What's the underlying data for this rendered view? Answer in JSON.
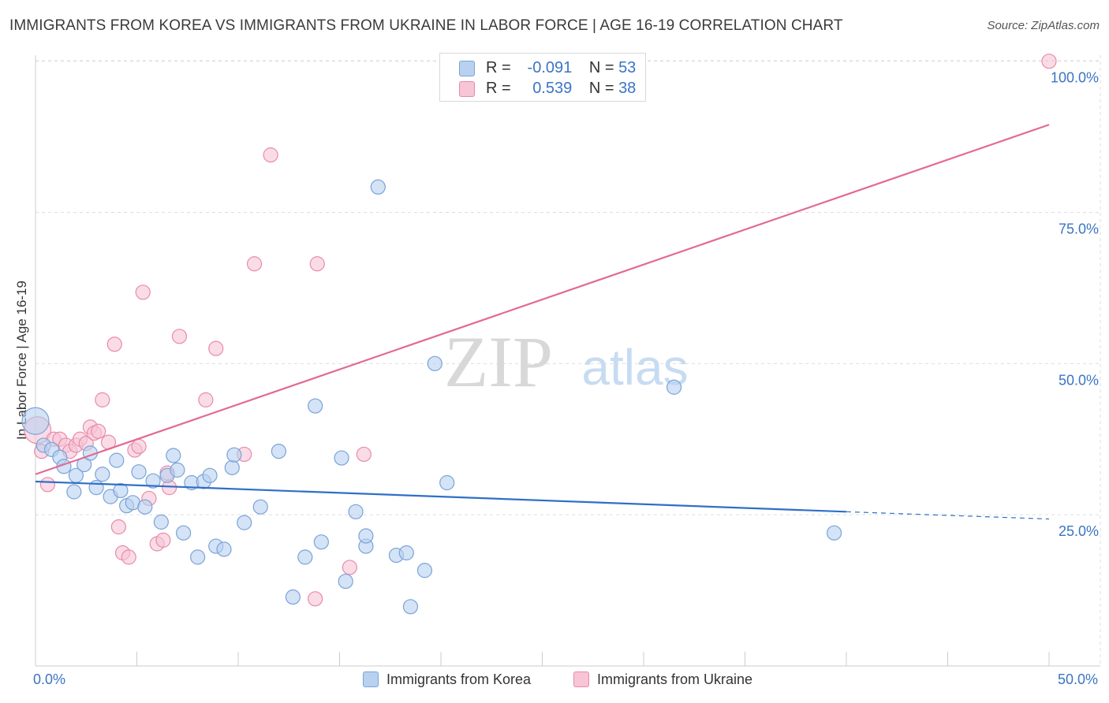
{
  "header": {
    "title": "IMMIGRANTS FROM KOREA VS IMMIGRANTS FROM UKRAINE IN LABOR FORCE | AGE 16-19 CORRELATION CHART",
    "source": "Source: ZipAtlas.com"
  },
  "watermark": {
    "zip": "ZIP",
    "atlas": "atlas"
  },
  "legend": {
    "korea": {
      "r_label": "R =",
      "r_value": "-0.091",
      "n_label": "N =",
      "n_value": "53"
    },
    "ukraine": {
      "r_label": "R =",
      "r_value": "0.539",
      "n_label": "N =",
      "n_value": "38"
    }
  },
  "colors": {
    "korea_fill": "#b8d1f0",
    "korea_stroke": "#7aa3d8",
    "korea_line": "#2f6fc8",
    "ukraine_fill": "#f7c5d5",
    "ukraine_stroke": "#e98aab",
    "ukraine_line": "#e26a95",
    "tick_text": "#3b74c4",
    "grid": "#dddddd"
  },
  "chart_data": {
    "type": "scatter",
    "title": "IMMIGRANTS FROM KOREA VS IMMIGRANTS FROM UKRAINE IN LABOR FORCE | AGE 16-19 CORRELATION CHART",
    "xlabel": "",
    "ylabel": "In Labor Force | Age 16-19",
    "xlim": [
      0,
      50
    ],
    "ylim": [
      0,
      101
    ],
    "x_tick_labels": [
      "0.0%",
      "50.0%"
    ],
    "y_ticks": [
      25,
      50,
      75,
      100
    ],
    "y_tick_labels": [
      "25.0%",
      "50.0%",
      "75.0%",
      "100.0%"
    ],
    "grid": true,
    "legend_position": "top-center",
    "series": [
      {
        "name": "Immigrants from Korea",
        "r": -0.091,
        "n": 53,
        "trend": {
          "x0": 0,
          "y0": 30.5,
          "x1": 40,
          "y1": 25.5,
          "dashed_to_x": 50,
          "dashed_to_y": 24.3
        },
        "points": [
          {
            "x": 0.0,
            "y": 40.5,
            "big": true
          },
          {
            "x": 0.4,
            "y": 36.5
          },
          {
            "x": 0.8,
            "y": 35.8
          },
          {
            "x": 1.2,
            "y": 34.5
          },
          {
            "x": 1.4,
            "y": 33.0
          },
          {
            "x": 1.9,
            "y": 28.8
          },
          {
            "x": 2.0,
            "y": 31.5
          },
          {
            "x": 2.4,
            "y": 33.3
          },
          {
            "x": 2.7,
            "y": 35.2
          },
          {
            "x": 3.0,
            "y": 29.5
          },
          {
            "x": 3.3,
            "y": 31.7
          },
          {
            "x": 3.7,
            "y": 28.0
          },
          {
            "x": 4.0,
            "y": 34.0
          },
          {
            "x": 4.2,
            "y": 29.0
          },
          {
            "x": 4.5,
            "y": 26.5
          },
          {
            "x": 4.8,
            "y": 27.0
          },
          {
            "x": 5.1,
            "y": 32.1
          },
          {
            "x": 5.4,
            "y": 26.3
          },
          {
            "x": 5.8,
            "y": 30.6
          },
          {
            "x": 6.2,
            "y": 23.8
          },
          {
            "x": 6.5,
            "y": 31.5
          },
          {
            "x": 6.8,
            "y": 34.8
          },
          {
            "x": 7.0,
            "y": 32.4
          },
          {
            "x": 7.3,
            "y": 22.0
          },
          {
            "x": 7.7,
            "y": 30.3
          },
          {
            "x": 8.0,
            "y": 18.0
          },
          {
            "x": 8.3,
            "y": 30.5
          },
          {
            "x": 8.6,
            "y": 31.5
          },
          {
            "x": 8.9,
            "y": 19.8
          },
          {
            "x": 9.3,
            "y": 19.3
          },
          {
            "x": 9.7,
            "y": 32.8
          },
          {
            "x": 9.8,
            "y": 34.9
          },
          {
            "x": 10.3,
            "y": 23.7
          },
          {
            "x": 11.1,
            "y": 26.3
          },
          {
            "x": 12.0,
            "y": 35.5
          },
          {
            "x": 12.7,
            "y": 11.4
          },
          {
            "x": 13.3,
            "y": 18.0
          },
          {
            "x": 13.8,
            "y": 43.0
          },
          {
            "x": 14.1,
            "y": 20.5
          },
          {
            "x": 15.1,
            "y": 34.4
          },
          {
            "x": 15.3,
            "y": 14.0
          },
          {
            "x": 15.8,
            "y": 25.5
          },
          {
            "x": 16.3,
            "y": 19.8
          },
          {
            "x": 16.3,
            "y": 21.5
          },
          {
            "x": 16.9,
            "y": 79.2
          },
          {
            "x": 17.8,
            "y": 18.3
          },
          {
            "x": 18.3,
            "y": 18.7
          },
          {
            "x": 18.5,
            "y": 9.8
          },
          {
            "x": 19.2,
            "y": 15.8
          },
          {
            "x": 19.7,
            "y": 50.0
          },
          {
            "x": 20.3,
            "y": 30.3
          },
          {
            "x": 31.5,
            "y": 46.1
          },
          {
            "x": 39.4,
            "y": 22.0
          }
        ]
      },
      {
        "name": "Immigrants from Ukraine",
        "r": 0.539,
        "n": 38,
        "trend": {
          "x0": 0,
          "y0": 31.7,
          "x1": 50,
          "y1": 89.5
        },
        "points": [
          {
            "x": 0.1,
            "y": 39.0,
            "big": true
          },
          {
            "x": 0.3,
            "y": 35.5
          },
          {
            "x": 0.6,
            "y": 30.0
          },
          {
            "x": 0.9,
            "y": 37.5
          },
          {
            "x": 1.2,
            "y": 37.5
          },
          {
            "x": 1.5,
            "y": 36.5
          },
          {
            "x": 1.7,
            "y": 35.5
          },
          {
            "x": 2.0,
            "y": 36.5
          },
          {
            "x": 2.2,
            "y": 37.5
          },
          {
            "x": 2.5,
            "y": 36.8
          },
          {
            "x": 2.7,
            "y": 39.5
          },
          {
            "x": 2.9,
            "y": 38.5
          },
          {
            "x": 3.1,
            "y": 38.8
          },
          {
            "x": 3.3,
            "y": 44.0
          },
          {
            "x": 3.6,
            "y": 37.0
          },
          {
            "x": 3.9,
            "y": 53.2
          },
          {
            "x": 4.1,
            "y": 23.0
          },
          {
            "x": 4.3,
            "y": 18.7
          },
          {
            "x": 4.6,
            "y": 18.0
          },
          {
            "x": 4.9,
            "y": 35.7
          },
          {
            "x": 5.1,
            "y": 36.3
          },
          {
            "x": 5.3,
            "y": 61.8
          },
          {
            "x": 5.6,
            "y": 27.7
          },
          {
            "x": 6.0,
            "y": 20.2
          },
          {
            "x": 6.3,
            "y": 20.8
          },
          {
            "x": 6.5,
            "y": 31.9
          },
          {
            "x": 6.6,
            "y": 29.5
          },
          {
            "x": 7.1,
            "y": 54.5
          },
          {
            "x": 8.4,
            "y": 44.0
          },
          {
            "x": 8.9,
            "y": 52.5
          },
          {
            "x": 10.3,
            "y": 35.0
          },
          {
            "x": 10.8,
            "y": 66.5
          },
          {
            "x": 11.6,
            "y": 84.5
          },
          {
            "x": 13.8,
            "y": 11.1
          },
          {
            "x": 13.9,
            "y": 66.5
          },
          {
            "x": 15.5,
            "y": 16.3
          },
          {
            "x": 16.2,
            "y": 35.0
          },
          {
            "x": 50.0,
            "y": 100.0
          }
        ]
      }
    ]
  }
}
